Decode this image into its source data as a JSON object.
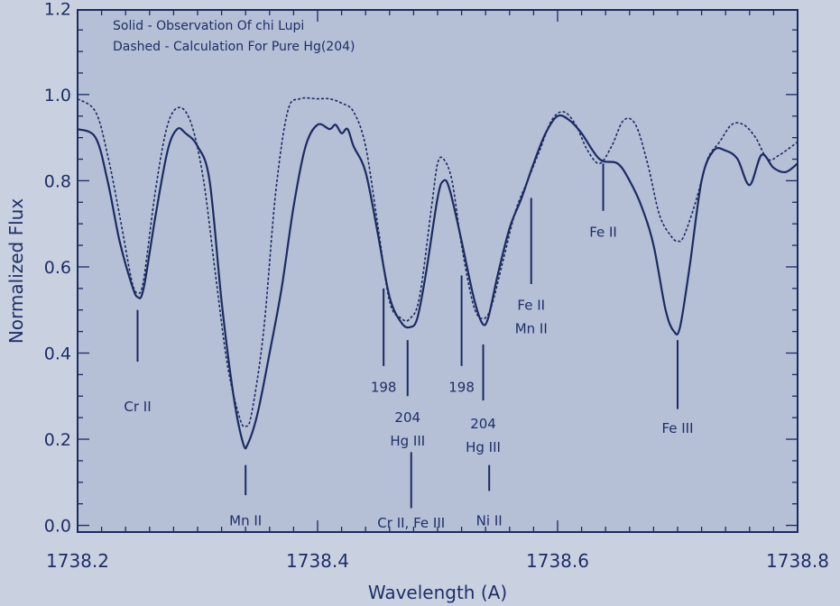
{
  "chart_data": {
    "type": "line",
    "title": "",
    "xlabel": "Wavelength (A)",
    "ylabel": "Normalized Flux",
    "xlim": [
      1738.2,
      1738.8
    ],
    "ylim": [
      0.0,
      1.22
    ],
    "xticks": [
      "1738.2",
      "1738.4",
      "1738.6",
      "1738.8"
    ],
    "yticks": [
      "0.0",
      "0.2",
      "0.4",
      "0.6",
      "0.8",
      "1.0",
      "1.2"
    ],
    "legend": [
      "Solid - Observation Of chi Lupi",
      "Dashed - Calculation For Pure Hg(204)"
    ],
    "series": [
      {
        "name": "Observation Of chi Lupi",
        "style": "solid",
        "x": [
          1738.2,
          1738.215,
          1738.225,
          1738.235,
          1738.245,
          1738.25,
          1738.255,
          1738.265,
          1738.275,
          1738.283,
          1738.29,
          1738.3,
          1738.31,
          1738.32,
          1738.33,
          1738.338,
          1738.342,
          1738.35,
          1738.36,
          1738.37,
          1738.38,
          1738.39,
          1738.4,
          1738.41,
          1738.415,
          1738.42,
          1738.425,
          1738.43,
          1738.44,
          1738.45,
          1738.46,
          1738.47,
          1738.477,
          1738.483,
          1738.49,
          1738.5,
          1738.505,
          1738.51,
          1738.52,
          1738.53,
          1738.537,
          1738.542,
          1738.55,
          1738.56,
          1738.57,
          1738.58,
          1738.59,
          1738.6,
          1738.61,
          1738.62,
          1738.635,
          1738.65,
          1738.66,
          1738.67,
          1738.68,
          1738.69,
          1738.697,
          1738.702,
          1738.71,
          1738.72,
          1738.73,
          1738.74,
          1738.75,
          1738.76,
          1738.77,
          1738.78,
          1738.79,
          1738.8
        ],
        "y": [
          0.92,
          0.9,
          0.8,
          0.66,
          0.56,
          0.53,
          0.55,
          0.72,
          0.87,
          0.92,
          0.91,
          0.88,
          0.8,
          0.52,
          0.3,
          0.19,
          0.19,
          0.26,
          0.4,
          0.55,
          0.74,
          0.88,
          0.93,
          0.92,
          0.93,
          0.91,
          0.92,
          0.88,
          0.82,
          0.68,
          0.53,
          0.47,
          0.46,
          0.48,
          0.58,
          0.76,
          0.8,
          0.78,
          0.66,
          0.53,
          0.47,
          0.48,
          0.58,
          0.69,
          0.76,
          0.84,
          0.91,
          0.95,
          0.94,
          0.91,
          0.85,
          0.84,
          0.8,
          0.74,
          0.65,
          0.5,
          0.45,
          0.46,
          0.6,
          0.8,
          0.87,
          0.87,
          0.85,
          0.79,
          0.86,
          0.83,
          0.82,
          0.84
        ]
      },
      {
        "name": "Calculation For Pure Hg(204)",
        "style": "dashed",
        "x": [
          1738.2,
          1738.215,
          1738.225,
          1738.235,
          1738.245,
          1738.25,
          1738.255,
          1738.265,
          1738.275,
          1738.285,
          1738.295,
          1738.305,
          1738.315,
          1738.325,
          1738.335,
          1738.34,
          1738.345,
          1738.355,
          1738.365,
          1738.375,
          1738.385,
          1738.4,
          1738.41,
          1738.42,
          1738.43,
          1738.44,
          1738.45,
          1738.46,
          1738.47,
          1738.477,
          1738.485,
          1738.495,
          1738.5,
          1738.505,
          1738.512,
          1738.52,
          1738.53,
          1738.538,
          1738.545,
          1738.555,
          1738.565,
          1738.575,
          1738.585,
          1738.595,
          1738.605,
          1738.615,
          1738.625,
          1738.635,
          1738.645,
          1738.655,
          1738.665,
          1738.675,
          1738.685,
          1738.695,
          1738.7,
          1738.705,
          1738.715,
          1738.725,
          1738.735,
          1738.745,
          1738.755,
          1738.765,
          1738.775,
          1738.785,
          1738.8
        ],
        "y": [
          0.99,
          0.96,
          0.86,
          0.72,
          0.57,
          0.54,
          0.57,
          0.78,
          0.93,
          0.97,
          0.93,
          0.8,
          0.58,
          0.37,
          0.25,
          0.23,
          0.26,
          0.45,
          0.77,
          0.96,
          0.99,
          0.99,
          0.99,
          0.98,
          0.96,
          0.88,
          0.7,
          0.52,
          0.48,
          0.48,
          0.53,
          0.74,
          0.84,
          0.85,
          0.8,
          0.65,
          0.51,
          0.48,
          0.51,
          0.62,
          0.73,
          0.8,
          0.87,
          0.94,
          0.96,
          0.93,
          0.87,
          0.84,
          0.88,
          0.94,
          0.93,
          0.84,
          0.72,
          0.67,
          0.66,
          0.67,
          0.75,
          0.85,
          0.89,
          0.93,
          0.93,
          0.9,
          0.85,
          0.86,
          0.89
        ]
      }
    ],
    "annotations": [
      {
        "x": 1738.25,
        "y1": 0.5,
        "y2": 0.38,
        "lines": [
          "Cr II"
        ],
        "text_y": 0.265
      },
      {
        "x": 1738.34,
        "y1": 0.14,
        "y2": 0.07,
        "lines": [
          "Mn II"
        ],
        "text_y": 0.0
      },
      {
        "x": 1738.455,
        "y1": 0.55,
        "y2": 0.37,
        "lines": [
          "198"
        ],
        "text_y": 0.31
      },
      {
        "x": 1738.475,
        "y1": 0.43,
        "y2": 0.3,
        "lines": [
          "204",
          "Hg III"
        ],
        "text_y": 0.24
      },
      {
        "x": 1738.478,
        "y1": 0.17,
        "y2": 0.04,
        "lines": [
          "Cr II, Fe III"
        ],
        "text_y": -0.005
      },
      {
        "x": 1738.52,
        "y1": 0.58,
        "y2": 0.37,
        "lines": [
          "198"
        ],
        "text_y": 0.31
      },
      {
        "x": 1738.538,
        "y1": 0.42,
        "y2": 0.29,
        "lines": [
          "204",
          "Hg III"
        ],
        "text_y": 0.225
      },
      {
        "x": 1738.543,
        "y1": 0.14,
        "y2": 0.08,
        "lines": [
          "Ni II"
        ],
        "text_y": 0.0
      },
      {
        "x": 1738.578,
        "y1": 0.76,
        "y2": 0.56,
        "lines": [
          "Fe II",
          "Mn II"
        ],
        "text_y": 0.5
      },
      {
        "x": 1738.638,
        "y1": 0.84,
        "y2": 0.73,
        "lines": [
          "Fe II"
        ],
        "text_y": 0.67
      },
      {
        "x": 1738.7,
        "y1": 0.43,
        "y2": 0.27,
        "lines": [
          "Fe III"
        ],
        "text_y": 0.215
      }
    ],
    "grid": false,
    "legend_placement": "top-left",
    "colors": {
      "background": "#c9d1e1",
      "plot_background": "#b5bfd6",
      "line": "#1c2b62",
      "text": "#1f2f66"
    }
  }
}
